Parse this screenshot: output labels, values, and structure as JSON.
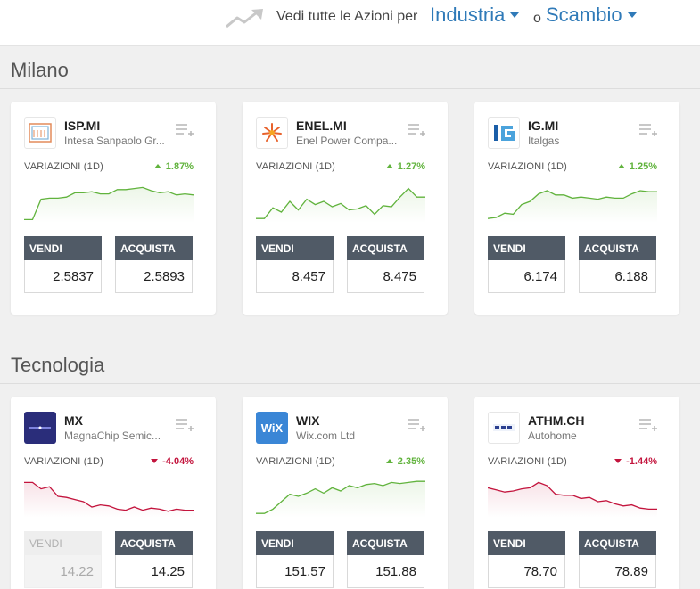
{
  "header": {
    "lead_text": "Vedi tutte le Azioni per",
    "industry_label": "Industria",
    "or_text": "o",
    "exchange_label": "Scambio",
    "trend_icon": "trend-up-icon"
  },
  "labels": {
    "change": "VARIAZIONI (1D)",
    "sell": "VENDI",
    "buy": "ACQUISTA"
  },
  "sections": [
    {
      "title": "Milano",
      "cards": [
        {
          "symbol": "ISP.MI",
          "name": "Intesa Sanpaolo Gr...",
          "change": "1.87%",
          "direction": "up",
          "sell": "2.5837",
          "buy": "2.5893",
          "sell_disabled": false,
          "spark": [
            3,
            3,
            22,
            23,
            23,
            24,
            28,
            28,
            29,
            27,
            27,
            31,
            31,
            32,
            33,
            30,
            28,
            29,
            26,
            27,
            26
          ]
        },
        {
          "symbol": "ENEL.MI",
          "name": "Enel Power Compa...",
          "change": "1.27%",
          "direction": "up",
          "sell": "8.457",
          "buy": "8.475",
          "sell_disabled": false,
          "spark": [
            4,
            4,
            14,
            10,
            20,
            12,
            22,
            17,
            20,
            15,
            18,
            12,
            13,
            16,
            8,
            16,
            15,
            24,
            32,
            24,
            24
          ]
        },
        {
          "symbol": "IG.MI",
          "name": "Italgas",
          "change": "1.25%",
          "direction": "up",
          "sell": "6.174",
          "buy": "6.188",
          "sell_disabled": false,
          "spark": [
            4,
            5,
            9,
            8,
            17,
            20,
            27,
            30,
            26,
            26,
            23,
            24,
            23,
            22,
            24,
            23,
            23,
            27,
            30,
            29,
            29
          ]
        }
      ]
    },
    {
      "title": "Tecnologia",
      "cards": [
        {
          "symbol": "MX",
          "name": "MagnaChip Semic...",
          "change": "-4.04%",
          "direction": "down",
          "sell": "14.22",
          "buy": "14.25",
          "sell_disabled": true,
          "spark": [
            33,
            33,
            27,
            29,
            20,
            19,
            17,
            15,
            10,
            12,
            11,
            8,
            7,
            10,
            7,
            9,
            8,
            6,
            8,
            7,
            7
          ]
        },
        {
          "symbol": "WIX",
          "name": "Wix.com Ltd",
          "change": "2.35%",
          "direction": "up",
          "sell": "151.57",
          "buy": "151.88",
          "sell_disabled": false,
          "spark": [
            4,
            4,
            8,
            15,
            22,
            20,
            23,
            27,
            23,
            28,
            25,
            30,
            28,
            31,
            32,
            30,
            33,
            32,
            33,
            34,
            34
          ]
        },
        {
          "symbol": "ATHM.CH",
          "name": "Autohome",
          "change": "-1.44%",
          "direction": "down",
          "sell": "78.70",
          "buy": "78.89",
          "sell_disabled": false,
          "spark": [
            28,
            26,
            24,
            25,
            27,
            28,
            33,
            30,
            22,
            21,
            21,
            18,
            19,
            15,
            16,
            13,
            11,
            12,
            9,
            8,
            8
          ]
        }
      ]
    }
  ]
}
